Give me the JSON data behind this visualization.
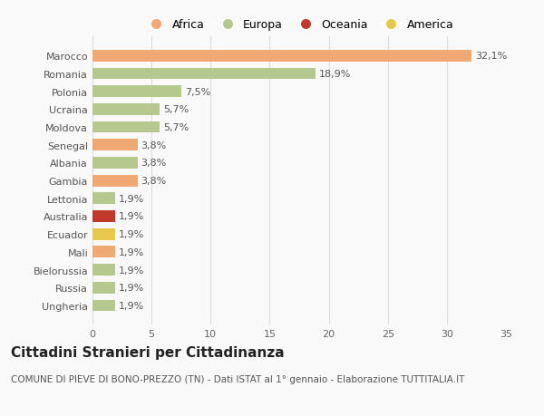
{
  "categories": [
    "Marocco",
    "Romania",
    "Polonia",
    "Ucraina",
    "Moldova",
    "Senegal",
    "Albania",
    "Gambia",
    "Lettonia",
    "Australia",
    "Ecuador",
    "Mali",
    "Bielorussia",
    "Russia",
    "Ungheria"
  ],
  "values": [
    32.1,
    18.9,
    7.5,
    5.7,
    5.7,
    3.8,
    3.8,
    3.8,
    1.9,
    1.9,
    1.9,
    1.9,
    1.9,
    1.9,
    1.9
  ],
  "colors": [
    "#f0a875",
    "#b5c98e",
    "#b5c98e",
    "#b5c98e",
    "#b5c98e",
    "#f0a875",
    "#b5c98e",
    "#f0a875",
    "#b5c98e",
    "#c0392b",
    "#e8c84a",
    "#f0a875",
    "#b5c98e",
    "#b5c98e",
    "#b5c98e"
  ],
  "labels": [
    "32,1%",
    "18,9%",
    "7,5%",
    "5,7%",
    "5,7%",
    "3,8%",
    "3,8%",
    "3,8%",
    "1,9%",
    "1,9%",
    "1,9%",
    "1,9%",
    "1,9%",
    "1,9%",
    "1,9%"
  ],
  "legend": [
    {
      "label": "Africa",
      "color": "#f0a875"
    },
    {
      "label": "Europa",
      "color": "#b5c98e"
    },
    {
      "label": "Oceania",
      "color": "#c0392b"
    },
    {
      "label": "America",
      "color": "#e8c84a"
    }
  ],
  "title": "Cittadini Stranieri per Cittadinanza",
  "subtitle": "COMUNE DI PIEVE DI BONO-PREZZO (TN) - Dati ISTAT al 1° gennaio - Elaborazione TUTTITALIA.IT",
  "xlim": [
    0,
    35
  ],
  "xticks": [
    0,
    5,
    10,
    15,
    20,
    25,
    30,
    35
  ],
  "bg_color": "#f9f9f9",
  "grid_color": "#dddddd",
  "bar_height": 0.65,
  "label_fontsize": 8,
  "tick_fontsize": 8,
  "title_fontsize": 11,
  "subtitle_fontsize": 7.5
}
